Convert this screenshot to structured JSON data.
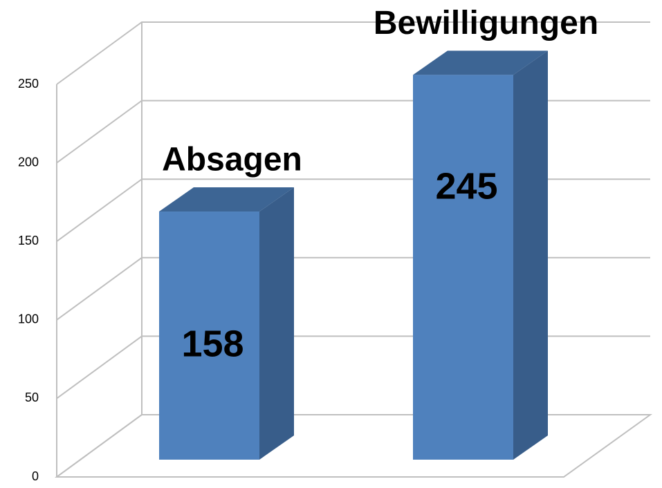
{
  "chart_data": {
    "type": "bar",
    "categories": [
      "Absagen",
      "Bewilligungen"
    ],
    "values": [
      158,
      245
    ],
    "color": "#4f81bd",
    "ylim": [
      0,
      250
    ],
    "yticks": [
      0,
      50,
      100,
      150,
      200,
      250
    ],
    "grid": true
  }
}
